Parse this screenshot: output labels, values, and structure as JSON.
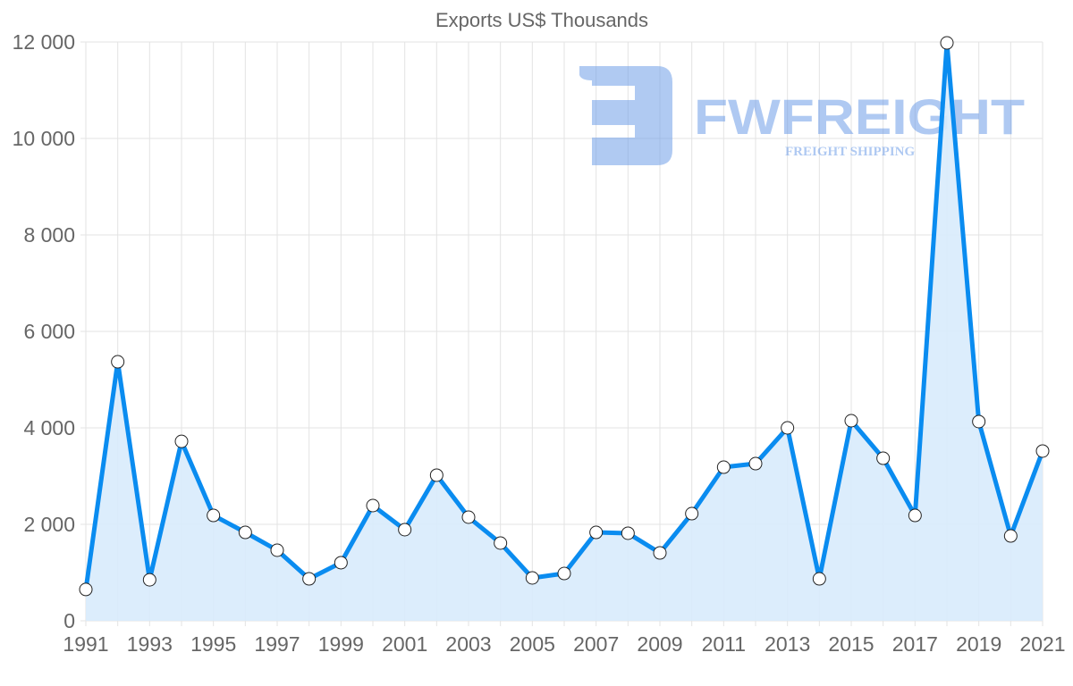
{
  "chart_data": {
    "type": "line",
    "title": "Exports US$ Thousands",
    "xlabel": "",
    "ylabel": "",
    "x": [
      1991,
      1992,
      1993,
      1994,
      1995,
      1996,
      1997,
      1998,
      1999,
      2000,
      2001,
      2002,
      2003,
      2004,
      2005,
      2006,
      2007,
      2008,
      2009,
      2010,
      2011,
      2012,
      2013,
      2014,
      2015,
      2016,
      2017,
      2018,
      2019,
      2020,
      2021
    ],
    "series": [
      {
        "name": "Exports US$ Thousands",
        "values": [
          650,
          5370,
          850,
          3720,
          2185,
          1833,
          1463,
          870,
          1204,
          2389,
          1889,
          3019,
          2148,
          1611,
          889,
          981,
          1833,
          1815,
          1407,
          2222,
          3185,
          3259,
          4000,
          870,
          4148,
          3370,
          2185,
          11981,
          4130,
          1759,
          3519
        ],
        "color": "#0a8cf0",
        "fill": "#d8ebfc"
      }
    ],
    "ylim": [
      0,
      12000
    ],
    "yticks": [
      "0",
      "2 000",
      "4 000",
      "6 000",
      "8 000",
      "10 000",
      "12 000"
    ],
    "ytick_values": [
      0,
      2000,
      4000,
      6000,
      8000,
      10000,
      12000
    ],
    "xticks": [
      "1991",
      "1993",
      "1995",
      "1997",
      "1999",
      "2001",
      "2003",
      "2005",
      "2007",
      "2009",
      "2011",
      "2013",
      "2015",
      "2017",
      "2019",
      "2021"
    ],
    "grid": true,
    "legend": "none"
  },
  "watermark": {
    "brand": "FWFREIGHT",
    "tagline": "FREIGHT SHIPPING",
    "color": "#6f9ee8"
  }
}
